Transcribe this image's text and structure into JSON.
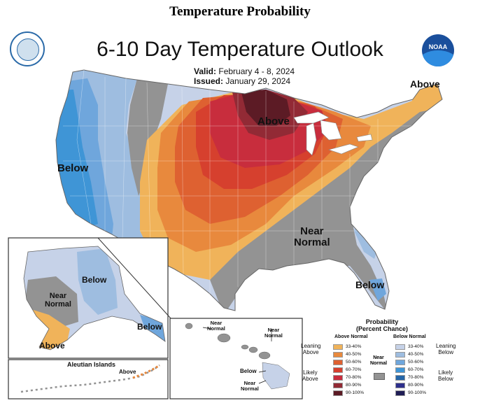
{
  "page_title": "Temperature Probability",
  "map_title": "6-10 Day Temperature Outlook",
  "valid": {
    "label": "Valid:",
    "value": "February 4 - 8, 2024"
  },
  "issued": {
    "label": "Issued:",
    "value": "January 29, 2024"
  },
  "logos": {
    "left": "commerce-seal",
    "right": "noaa-logo",
    "right_text": "NOAA"
  },
  "conus_labels": {
    "above_midwest": "Above",
    "above_maine": "Above",
    "below_west": "Below",
    "near_normal_southeast": "Near\nNormal",
    "below_florida": "Below"
  },
  "alaska": {
    "below_north": "Below",
    "near_normal": "Near\nNormal",
    "below_panhandle": "Below",
    "above_southwest": "Above"
  },
  "aleutian": {
    "title": "Aleutian Islands",
    "above": "Above"
  },
  "hawaii": {
    "near_normal_1": "Near\nNormal",
    "near_normal_2": "Near\nNormal",
    "below": "Below",
    "near_normal_3": "Near\nNormal"
  },
  "legend": {
    "title": "Probability\n(Percent Chance)",
    "above_header": "Above Normal",
    "below_header": "Below Normal",
    "near_label": "Near\nNormal",
    "leaning_above": "Leaning\nAbove",
    "likely_above": "Likely\nAbove",
    "leaning_below": "Leaning\nBelow",
    "likely_below": "Likely\nBelow",
    "above_bins": [
      {
        "range": "33-40%",
        "color": "#f0b35a"
      },
      {
        "range": "40-50%",
        "color": "#e8893d"
      },
      {
        "range": "50-60%",
        "color": "#de6131"
      },
      {
        "range": "60-70%",
        "color": "#d6402e"
      },
      {
        "range": "70-80%",
        "color": "#c82d3d"
      },
      {
        "range": "80-90%",
        "color": "#922a35"
      },
      {
        "range": "90-100%",
        "color": "#5c1b25"
      }
    ],
    "below_bins": [
      {
        "range": "33-40%",
        "color": "#c6d2e8"
      },
      {
        "range": "40-50%",
        "color": "#9ebde0"
      },
      {
        "range": "50-60%",
        "color": "#6fa6dc"
      },
      {
        "range": "60-70%",
        "color": "#3f95d6"
      },
      {
        "range": "70-80%",
        "color": "#2566a8"
      },
      {
        "range": "80-90%",
        "color": "#2d2f8c"
      },
      {
        "range": "90-100%",
        "color": "#1f1d55"
      }
    ],
    "near_color": "#939393"
  }
}
